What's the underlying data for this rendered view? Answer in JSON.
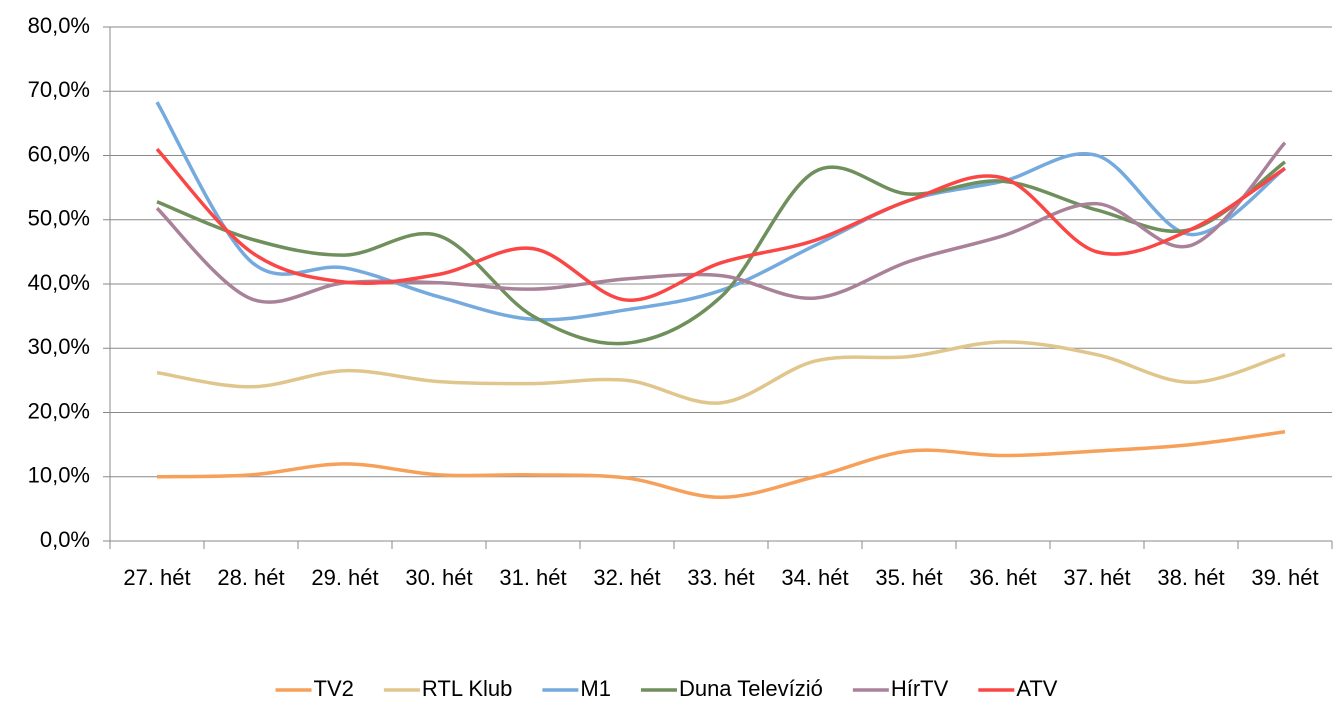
{
  "chart_data": {
    "type": "line",
    "categories": [
      "27. hét",
      "28. hét",
      "29. hét",
      "30. hét",
      "31. hét",
      "32. hét",
      "33. hét",
      "34. hét",
      "35. hét",
      "36. hét",
      "37. hét",
      "38. hét",
      "39. hét"
    ],
    "series": [
      {
        "name": "TV2",
        "color": "#f7a05a",
        "values": [
          10,
          10.3,
          12,
          10.3,
          10.3,
          9.8,
          6.8,
          10,
          14,
          13.3,
          14,
          15,
          17
        ]
      },
      {
        "name": "RTL Klub",
        "color": "#e0c68c",
        "values": [
          26.2,
          24,
          26.5,
          24.8,
          24.5,
          25,
          21.5,
          28,
          28.7,
          31,
          29,
          24.7,
          29
        ]
      },
      {
        "name": "M1",
        "color": "#74aadd",
        "values": [
          68.3,
          43.5,
          42.5,
          38,
          34.5,
          36,
          39,
          46,
          53,
          56,
          60,
          47.7,
          58
        ]
      },
      {
        "name": "Duna Televízió",
        "color": "#6f8f5c",
        "values": [
          52.8,
          47,
          44.5,
          47.5,
          35,
          30.8,
          38,
          57.5,
          54,
          56,
          51.5,
          48.5,
          59
        ]
      },
      {
        "name": "HírTV",
        "color": "#a98299",
        "values": [
          51.8,
          37.7,
          40.2,
          40.2,
          39.2,
          40.8,
          41.3,
          37.8,
          43.5,
          47.5,
          52.5,
          46,
          62
        ]
      },
      {
        "name": "ATV",
        "color": "#fb4646",
        "values": [
          61,
          45,
          40.3,
          41.5,
          45.5,
          37.5,
          43.3,
          46.8,
          53,
          56.5,
          45,
          48.5,
          58
        ]
      }
    ],
    "ylim": [
      0,
      80
    ],
    "yticks": [
      {
        "value": 0,
        "label": "0,0%"
      },
      {
        "value": 10,
        "label": "10,0%"
      },
      {
        "value": 20,
        "label": "20,0%"
      },
      {
        "value": 30,
        "label": "30,0%"
      },
      {
        "value": 40,
        "label": "40,0%"
      },
      {
        "value": 50,
        "label": "50,0%"
      },
      {
        "value": 60,
        "label": "60,0%"
      },
      {
        "value": 70,
        "label": "70,0%"
      },
      {
        "value": 80,
        "label": "80,0%"
      }
    ],
    "grid": true,
    "legend": "bottom"
  }
}
